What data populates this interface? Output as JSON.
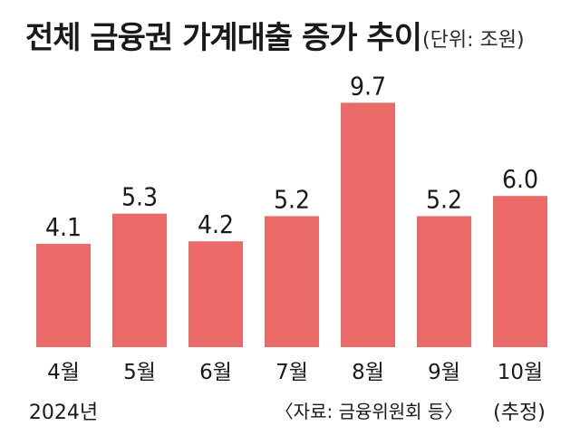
{
  "chart_data": {
    "type": "bar",
    "title": "전체 금융권 가계대출 증가 추이",
    "unit_note": "(단위: 조원)",
    "categories": [
      "4월",
      "5월",
      "6월",
      "7월",
      "8월",
      "9월",
      "10월"
    ],
    "values": [
      4.1,
      5.3,
      4.2,
      5.2,
      9.7,
      5.2,
      6.0
    ],
    "value_labels": [
      "4.1",
      "5.3",
      "4.2",
      "5.2",
      "9.7",
      "5.2",
      "6.0"
    ],
    "year_label": "2024년",
    "estimate_label": "(추정)",
    "source": "〈자료: 금융위원회 등〉",
    "bar_color": "#ea6a68",
    "ylim": [
      0,
      10.5
    ]
  }
}
